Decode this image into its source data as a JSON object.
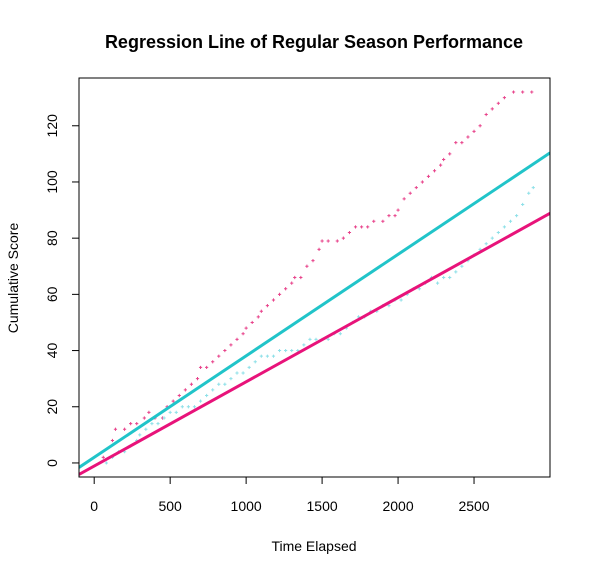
{
  "chart_data": {
    "type": "scatter",
    "title": "Regression Line of Regular Season Performance",
    "xlabel": "Time Elapsed",
    "ylabel": "Cumulative Score",
    "xlim": [
      -100,
      3000
    ],
    "ylim": [
      -5,
      137
    ],
    "x_ticks": [
      0,
      500,
      1000,
      1500,
      2000,
      2500
    ],
    "y_ticks": [
      0,
      20,
      40,
      60,
      80,
      100,
      120
    ],
    "grid": false,
    "legend": "none",
    "series": [
      {
        "color": "#e8438b",
        "marker": "+",
        "points": [
          [
            60,
            2
          ],
          [
            120,
            8
          ],
          [
            140,
            12
          ],
          [
            200,
            12
          ],
          [
            240,
            14
          ],
          [
            280,
            14
          ],
          [
            330,
            16
          ],
          [
            360,
            18
          ],
          [
            400,
            16
          ],
          [
            450,
            16
          ],
          [
            480,
            20
          ],
          [
            520,
            22
          ],
          [
            560,
            24
          ],
          [
            600,
            26
          ],
          [
            640,
            28
          ],
          [
            680,
            30
          ],
          [
            700,
            34
          ],
          [
            740,
            34
          ],
          [
            780,
            36
          ],
          [
            820,
            38
          ],
          [
            860,
            40
          ],
          [
            900,
            42
          ],
          [
            940,
            44
          ],
          [
            980,
            46
          ],
          [
            1000,
            48
          ],
          [
            1040,
            50
          ],
          [
            1080,
            52
          ],
          [
            1100,
            54
          ],
          [
            1140,
            56
          ],
          [
            1180,
            58
          ],
          [
            1220,
            60
          ],
          [
            1260,
            62
          ],
          [
            1300,
            64
          ],
          [
            1320,
            66
          ],
          [
            1360,
            66
          ],
          [
            1400,
            70
          ],
          [
            1440,
            72
          ],
          [
            1480,
            76
          ],
          [
            1500,
            79
          ],
          [
            1540,
            79
          ],
          [
            1600,
            79
          ],
          [
            1640,
            80
          ],
          [
            1680,
            82
          ],
          [
            1720,
            84
          ],
          [
            1760,
            84
          ],
          [
            1800,
            84
          ],
          [
            1840,
            86
          ],
          [
            1900,
            86
          ],
          [
            1940,
            88
          ],
          [
            1980,
            88
          ],
          [
            2000,
            90
          ],
          [
            2040,
            94
          ],
          [
            2080,
            96
          ],
          [
            2120,
            98
          ],
          [
            2160,
            100
          ],
          [
            2200,
            102
          ],
          [
            2240,
            104
          ],
          [
            2280,
            106
          ],
          [
            2300,
            108
          ],
          [
            2340,
            110
          ],
          [
            2380,
            114
          ],
          [
            2420,
            114
          ],
          [
            2460,
            116
          ],
          [
            2500,
            118
          ],
          [
            2540,
            120
          ],
          [
            2580,
            124
          ],
          [
            2620,
            126
          ],
          [
            2660,
            128
          ],
          [
            2700,
            130
          ],
          [
            2760,
            132
          ],
          [
            2820,
            132
          ],
          [
            2880,
            132
          ]
        ]
      },
      {
        "color": "#8ee0e8",
        "marker": "+",
        "points": [
          [
            80,
            0
          ],
          [
            120,
            2
          ],
          [
            160,
            4
          ],
          [
            200,
            4
          ],
          [
            240,
            6
          ],
          [
            280,
            8
          ],
          [
            300,
            10
          ],
          [
            340,
            12
          ],
          [
            380,
            14
          ],
          [
            420,
            14
          ],
          [
            460,
            16
          ],
          [
            500,
            18
          ],
          [
            540,
            18
          ],
          [
            580,
            20
          ],
          [
            620,
            20
          ],
          [
            660,
            20
          ],
          [
            700,
            22
          ],
          [
            740,
            24
          ],
          [
            780,
            26
          ],
          [
            820,
            28
          ],
          [
            860,
            28
          ],
          [
            900,
            30
          ],
          [
            940,
            32
          ],
          [
            980,
            32
          ],
          [
            1020,
            34
          ],
          [
            1060,
            36
          ],
          [
            1100,
            38
          ],
          [
            1140,
            38
          ],
          [
            1180,
            38
          ],
          [
            1220,
            40
          ],
          [
            1260,
            40
          ],
          [
            1300,
            40
          ],
          [
            1340,
            40
          ],
          [
            1380,
            42
          ],
          [
            1420,
            44
          ],
          [
            1460,
            44
          ],
          [
            1500,
            44
          ],
          [
            1540,
            44
          ],
          [
            1580,
            46
          ],
          [
            1620,
            46
          ],
          [
            1660,
            48
          ],
          [
            1700,
            50
          ],
          [
            1740,
            52
          ],
          [
            1780,
            52
          ],
          [
            1820,
            54
          ],
          [
            1860,
            54
          ],
          [
            1900,
            56
          ],
          [
            1940,
            56
          ],
          [
            1980,
            58
          ],
          [
            2020,
            58
          ],
          [
            2060,
            60
          ],
          [
            2100,
            62
          ],
          [
            2140,
            62
          ],
          [
            2180,
            64
          ],
          [
            2220,
            66
          ],
          [
            2260,
            64
          ],
          [
            2300,
            66
          ],
          [
            2340,
            66
          ],
          [
            2380,
            68
          ],
          [
            2420,
            70
          ],
          [
            2460,
            72
          ],
          [
            2500,
            74
          ],
          [
            2540,
            76
          ],
          [
            2580,
            78
          ],
          [
            2620,
            80
          ],
          [
            2660,
            82
          ],
          [
            2700,
            84
          ],
          [
            2740,
            86
          ],
          [
            2780,
            88
          ],
          [
            2820,
            92
          ],
          [
            2860,
            96
          ],
          [
            2890,
            98
          ]
        ]
      }
    ],
    "regression_lines": [
      {
        "color": "#21c4c9",
        "intercept": 2.0,
        "slope": 0.03612
      },
      {
        "color": "#e8137a",
        "intercept": -1.1,
        "slope": 0.02998
      }
    ]
  }
}
